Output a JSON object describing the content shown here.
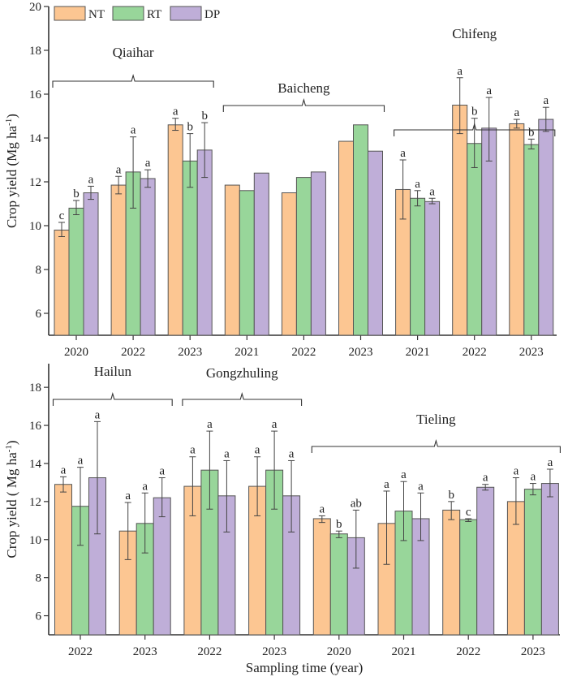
{
  "chart_data": [
    {
      "type": "bar",
      "panel": "top",
      "xlabel": "",
      "ylabel": "Crop yield (Mg ha-1)",
      "ylim": [
        5,
        20
      ],
      "yticks": [
        6,
        8,
        10,
        12,
        14,
        16,
        18,
        20
      ],
      "legend": {
        "placement": "top-left",
        "entries": [
          "NT",
          "RT",
          "DP"
        ]
      },
      "series_colors": {
        "NT": "#fcc692",
        "RT": "#98d69a",
        "DP": "#bfaed8"
      },
      "categories": [
        "2020",
        "2022",
        "2023",
        "2021",
        "2022",
        "2023",
        "2021",
        "2022",
        "2023"
      ],
      "groups": [
        {
          "site": "Qiaihar",
          "from": 0,
          "to": 2
        },
        {
          "site": "Baicheng",
          "from": 3,
          "to": 5
        },
        {
          "site": "Chifeng",
          "from": 6,
          "to": 8
        }
      ],
      "series": [
        {
          "name": "NT",
          "values": [
            9.8,
            11.85,
            14.6,
            11.85,
            11.5,
            13.85,
            11.65,
            15.5,
            14.65
          ],
          "err_low": [
            9.5,
            11.45,
            14.35,
            null,
            null,
            null,
            10.3,
            14.2,
            14.45
          ],
          "err_high": [
            10.15,
            12.25,
            14.9,
            null,
            null,
            null,
            13.0,
            16.75,
            14.85
          ],
          "letters": [
            "c",
            "a",
            "a",
            "",
            "",
            "",
            "a",
            "a",
            "a"
          ]
        },
        {
          "name": "RT",
          "values": [
            10.8,
            12.45,
            12.95,
            11.6,
            12.2,
            14.6,
            11.25,
            13.75,
            13.7
          ],
          "err_low": [
            10.5,
            10.8,
            11.75,
            null,
            null,
            null,
            10.9,
            12.65,
            13.5
          ],
          "err_high": [
            11.15,
            14.05,
            14.2,
            null,
            null,
            null,
            11.6,
            14.9,
            13.95
          ],
          "letters": [
            "b",
            "",
            "b",
            "",
            "",
            "",
            "a",
            "b",
            "b"
          ]
        },
        {
          "name": "DP",
          "values": [
            11.5,
            12.15,
            13.45,
            12.4,
            12.45,
            13.4,
            11.1,
            14.45,
            14.85
          ],
          "err_low": [
            11.2,
            11.75,
            12.2,
            null,
            null,
            null,
            11.0,
            12.95,
            14.3
          ],
          "err_high": [
            11.8,
            12.55,
            14.7,
            null,
            null,
            null,
            11.25,
            15.85,
            15.4
          ],
          "letters": [
            "a",
            "a",
            "b",
            "",
            "",
            "",
            "a",
            "a",
            "a"
          ]
        }
      ],
      "extra_letters": [
        {
          "category": 1,
          "series": "RT",
          "letter": "a"
        }
      ]
    },
    {
      "type": "bar",
      "panel": "bottom",
      "xlabel": "Sampling time (year)",
      "ylabel": "Crop yield ( Mg ha-1)",
      "ylim": [
        5,
        19.2
      ],
      "yticks": [
        6,
        8,
        10,
        12,
        14,
        16,
        18
      ],
      "series_colors": {
        "NT": "#fcc692",
        "RT": "#98d69a",
        "DP": "#bfaed8"
      },
      "categories": [
        "2022",
        "2023",
        "2022",
        "2023",
        "2020",
        "2021",
        "2022",
        "2023"
      ],
      "groups": [
        {
          "site": "Hailun",
          "from": 0,
          "to": 1
        },
        {
          "site": "Gongzhuling",
          "from": 2,
          "to": 3
        },
        {
          "site": "Tieling",
          "from": 4,
          "to": 7
        }
      ],
      "series": [
        {
          "name": "NT",
          "values": [
            12.9,
            10.45,
            12.8,
            12.8,
            11.1,
            10.85,
            11.55,
            12.0
          ],
          "err_low": [
            12.5,
            8.95,
            11.25,
            11.25,
            10.9,
            8.7,
            11.05,
            10.8
          ],
          "err_high": [
            13.3,
            11.95,
            14.35,
            14.35,
            11.25,
            12.55,
            12.0,
            13.25
          ],
          "letters": [
            "a",
            "a",
            "a",
            "a",
            "a",
            "a",
            "b",
            "a"
          ]
        },
        {
          "name": "RT",
          "values": [
            11.75,
            10.85,
            13.65,
            13.65,
            10.3,
            11.5,
            11.05,
            12.65
          ],
          "err_low": [
            9.7,
            9.3,
            11.6,
            11.6,
            10.1,
            9.95,
            10.95,
            12.35
          ],
          "err_high": [
            13.8,
            12.45,
            15.7,
            15.7,
            10.45,
            13.05,
            11.1,
            12.95
          ],
          "letters": [
            "a",
            "a",
            "a",
            "a",
            "b",
            "a",
            "c",
            "a"
          ]
        },
        {
          "name": "DP",
          "values": [
            13.25,
            12.2,
            12.3,
            12.3,
            10.1,
            11.1,
            12.75,
            12.95
          ],
          "err_low": [
            10.3,
            11.2,
            10.4,
            10.4,
            8.5,
            9.95,
            12.6,
            12.25
          ],
          "err_high": [
            16.2,
            13.25,
            14.15,
            14.15,
            11.55,
            12.45,
            12.9,
            13.7
          ],
          "letters": [
            "a",
            "a",
            "a",
            "a",
            "ab",
            "a",
            "a",
            "a"
          ]
        }
      ]
    }
  ]
}
